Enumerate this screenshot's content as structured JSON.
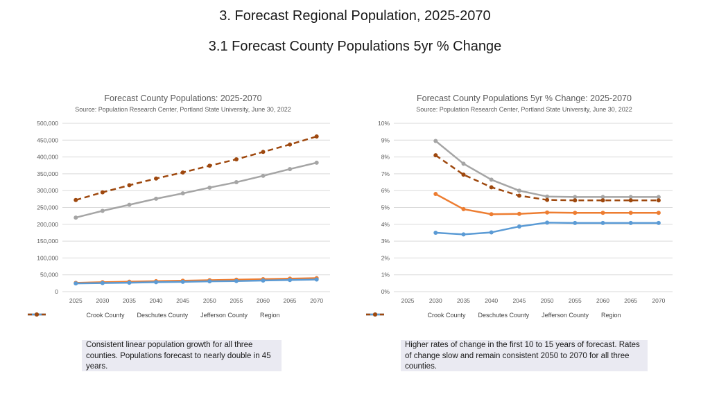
{
  "page": {
    "title": "3. Forecast Regional Population, 2025-2070",
    "subtitle": "3.1 Forecast County Populations 5yr % Change"
  },
  "colors": {
    "crook": "#ED7D31",
    "deschutes": "#A5A5A5",
    "jefferson": "#5B9BD5",
    "region": "#9E480E",
    "grid": "#D9D9D9",
    "note_bg": "#EAEAF2"
  },
  "chart_data": [
    {
      "type": "line",
      "title": "Forecast County Populations: 2025-2070",
      "source": "Source: Population Research Center, Portland State University, June 30, 2022",
      "categories": [
        "2025",
        "2030",
        "2035",
        "2040",
        "2045",
        "2050",
        "2055",
        "2060",
        "2065",
        "2070"
      ],
      "ylim": [
        0,
        500000
      ],
      "yticks": [
        0,
        50000,
        100000,
        150000,
        200000,
        250000,
        300000,
        350000,
        400000,
        450000,
        500000
      ],
      "ytick_labels": [
        "0",
        "50,000",
        "100,000",
        "150,000",
        "200,000",
        "250,000",
        "300,000",
        "350,000",
        "400,000",
        "450,000",
        "500,000"
      ],
      "series": [
        {
          "name": "Crook County",
          "color_key": "crook",
          "dashed": false,
          "values": [
            26000,
            28000,
            29500,
            31000,
            32500,
            34000,
            35500,
            37000,
            38500,
            40000
          ]
        },
        {
          "name": "Deschutes County",
          "color_key": "deschutes",
          "dashed": false,
          "values": [
            220000,
            240000,
            258000,
            276000,
            292000,
            309000,
            325000,
            344000,
            364000,
            383000
          ]
        },
        {
          "name": "Jefferson County",
          "color_key": "jefferson",
          "dashed": false,
          "values": [
            24500,
            25500,
            26500,
            28000,
            29000,
            30500,
            31500,
            33000,
            34500,
            36000
          ]
        },
        {
          "name": "Region",
          "color_key": "region",
          "dashed": true,
          "values": [
            272000,
            295000,
            316000,
            336000,
            354000,
            374000,
            393000,
            415000,
            437000,
            461000
          ]
        }
      ]
    },
    {
      "type": "line",
      "title": "Forecast County Populations 5yr % Change: 2025-2070",
      "source": "Source: Population Research Center, Portland State University, June 30, 2022",
      "categories": [
        "2025",
        "2030",
        "2035",
        "2040",
        "2045",
        "2050",
        "2055",
        "2060",
        "2065",
        "2070"
      ],
      "ylim": [
        0,
        10
      ],
      "yticks": [
        0,
        1,
        2,
        3,
        4,
        5,
        6,
        7,
        8,
        9,
        10
      ],
      "ytick_labels": [
        "0%",
        "1%",
        "2%",
        "3%",
        "4%",
        "5%",
        "6%",
        "7%",
        "8%",
        "9%",
        "10%"
      ],
      "series": [
        {
          "name": "Crook County",
          "color_key": "crook",
          "dashed": false,
          "values": [
            null,
            5.8,
            4.9,
            4.6,
            4.62,
            4.7,
            4.68,
            4.68,
            4.68,
            4.68
          ]
        },
        {
          "name": "Deschutes County",
          "color_key": "deschutes",
          "dashed": false,
          "values": [
            null,
            8.95,
            7.6,
            6.65,
            6.0,
            5.65,
            5.62,
            5.62,
            5.62,
            5.62
          ]
        },
        {
          "name": "Jefferson County",
          "color_key": "jefferson",
          "dashed": false,
          "values": [
            null,
            3.5,
            3.4,
            3.52,
            3.87,
            4.1,
            4.08,
            4.08,
            4.08,
            4.08
          ]
        },
        {
          "name": "Region",
          "color_key": "region",
          "dashed": true,
          "values": [
            null,
            8.1,
            6.95,
            6.2,
            5.7,
            5.45,
            5.42,
            5.42,
            5.42,
            5.42
          ]
        }
      ]
    }
  ],
  "notes": {
    "left": "Consistent linear population growth for all three counties. Populations forecast to nearly double in 45 years.",
    "right": "Higher rates of change in the first 10 to 15 years of forecast. Rates of change slow and remain consistent 2050 to 2070 for all three counties."
  }
}
